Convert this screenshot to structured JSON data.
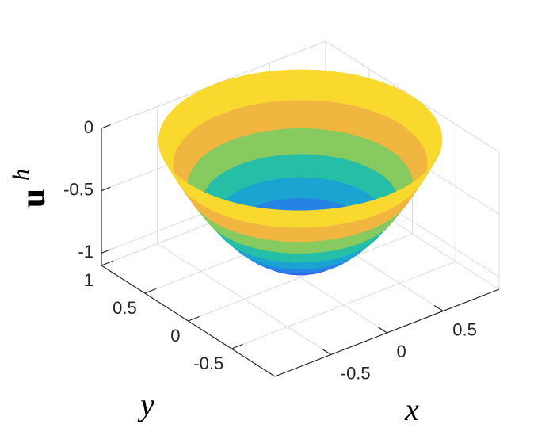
{
  "chart_data": {
    "type": "surface",
    "xlabel": "x",
    "ylabel": "y",
    "zlabel": "u",
    "zlabel_sup": "h",
    "xlim": [
      -1,
      1
    ],
    "ylim": [
      -1,
      1
    ],
    "zlim": [
      -1.1,
      0
    ],
    "xticks": [
      -0.5,
      0,
      0.5
    ],
    "yticks": [
      -0.5,
      0,
      0.5,
      1
    ],
    "zticks": [
      -1,
      -0.5,
      0
    ],
    "grid": true,
    "r": [
      0,
      0.1,
      0.2,
      0.3,
      0.4,
      0.5,
      0.6,
      0.7,
      0.8,
      0.9,
      1
    ],
    "z": [
      -1,
      -0.99,
      -0.96,
      -0.91,
      -0.84,
      -0.75,
      -0.64,
      -0.51,
      -0.36,
      -0.19,
      0
    ],
    "colormap": [
      "#3e26a8",
      "#2f6df0",
      "#1a9fd8",
      "#25bfa6",
      "#8cca5c",
      "#f0b440",
      "#fbc83a",
      "#f9fb15"
    ]
  }
}
